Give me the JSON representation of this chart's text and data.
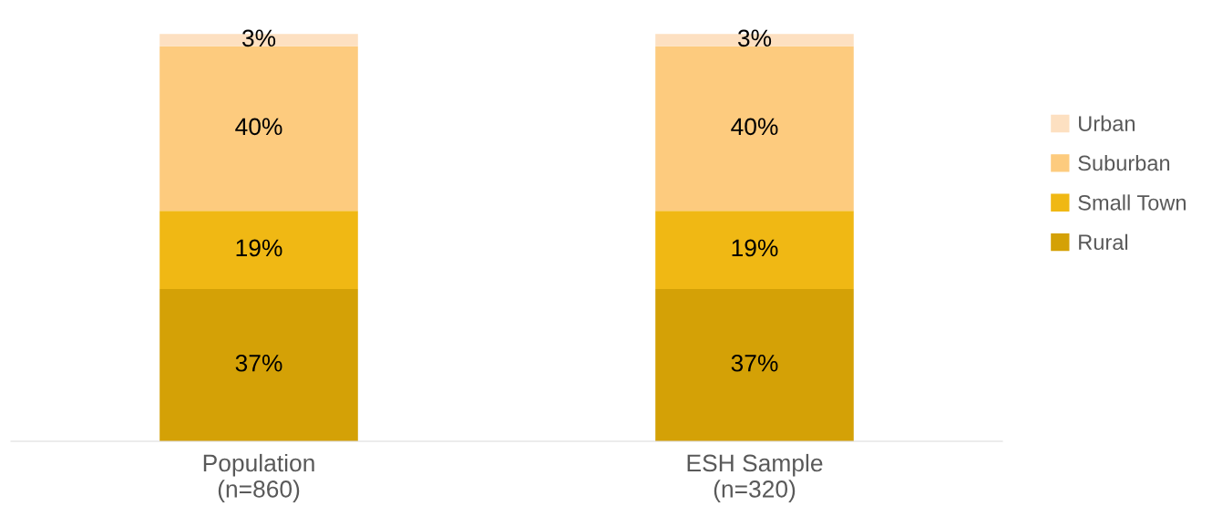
{
  "chart_data": {
    "type": "bar",
    "stacked": true,
    "legend": "right",
    "categories": [
      "Population\n(n=860)",
      "ESH Sample\n(n=320)"
    ],
    "series": [
      {
        "name": "Rural",
        "color": "#d4a106",
        "values": [
          37,
          37
        ],
        "value_labels": [
          "37%",
          "37%"
        ]
      },
      {
        "name": "Small Town",
        "color": "#f0b814",
        "values": [
          19,
          19
        ],
        "value_labels": [
          "19%",
          "19%"
        ]
      },
      {
        "name": "Suburban",
        "color": "#fdcb7e",
        "values": [
          40,
          40
        ],
        "value_labels": [
          "40%",
          "40%"
        ]
      },
      {
        "name": "Urban",
        "color": "#fde0c1",
        "values": [
          3,
          3
        ],
        "value_labels": [
          "3%",
          "3%"
        ]
      }
    ]
  }
}
